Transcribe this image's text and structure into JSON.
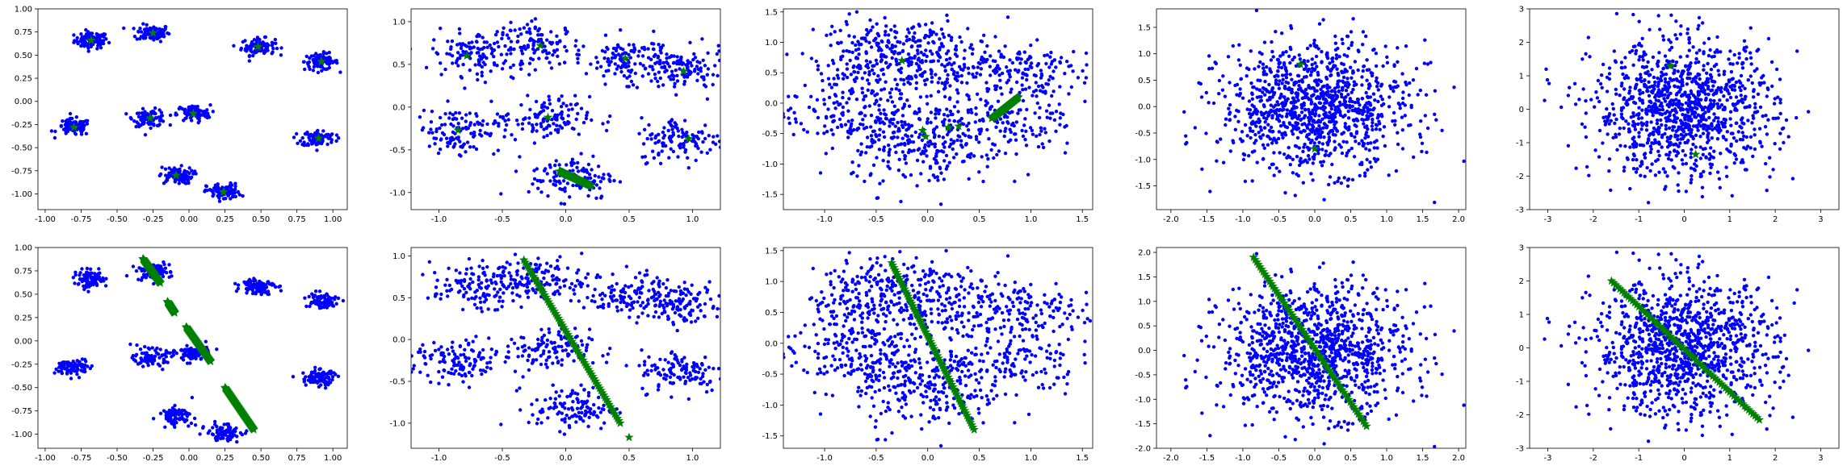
{
  "colors": {
    "points": "#0000ff",
    "stars": "#008000"
  },
  "chart_data": [
    {
      "type": "scatter",
      "panel": "row1-col1",
      "xlim": [
        -1.05,
        1.1
      ],
      "ylim": [
        -1.17,
        1.0
      ],
      "xticks": [
        "-1.00",
        "-0.75",
        "-0.50",
        "-0.25",
        "0.00",
        "0.25",
        "0.50",
        "0.75",
        "1.00"
      ],
      "yticks": [
        "1.00",
        "0.75",
        "0.50",
        "0.25",
        "0.00",
        "-0.25",
        "-0.50",
        "-0.75",
        "-1.00"
      ],
      "xtick_values": [
        -1,
        -0.75,
        -0.5,
        -0.25,
        0,
        0.25,
        0.5,
        0.75,
        1
      ],
      "ytick_values": [
        1,
        0.75,
        0.5,
        0.25,
        0,
        -0.25,
        -0.5,
        -0.75,
        -1
      ],
      "clusters": [
        [
          -0.68,
          0.66
        ],
        [
          -0.25,
          0.74
        ],
        [
          0.48,
          0.59
        ],
        [
          0.92,
          0.43
        ],
        [
          -0.8,
          -0.28
        ],
        [
          -0.27,
          -0.18
        ],
        [
          0.03,
          -0.13
        ],
        [
          0.9,
          -0.4
        ],
        [
          -0.09,
          -0.8
        ],
        [
          0.24,
          -0.98
        ]
      ],
      "cluster_spread": 0.045,
      "points_per_cluster": 90,
      "stars": [
        [
          -0.68,
          0.66
        ],
        [
          -0.25,
          0.74
        ],
        [
          0.48,
          0.59
        ],
        [
          0.92,
          0.43
        ],
        [
          -0.8,
          -0.28
        ],
        [
          -0.27,
          -0.18
        ],
        [
          0.03,
          -0.13
        ],
        [
          0.9,
          -0.4
        ],
        [
          -0.09,
          -0.8
        ],
        [
          0.24,
          -0.98
        ]
      ],
      "star_line": null
    },
    {
      "type": "scatter",
      "panel": "row1-col2",
      "xlim": [
        -1.22,
        1.22
      ],
      "ylim": [
        -1.2,
        1.15
      ],
      "xticks": [
        "-1.0",
        "-0.5",
        "0.0",
        "0.5",
        "1.0"
      ],
      "yticks": [
        "1.0",
        "0.5",
        "0.0",
        "-0.5",
        "-1.0"
      ],
      "xtick_values": [
        -1,
        -0.5,
        0,
        0.5,
        1
      ],
      "ytick_values": [
        1,
        0.5,
        0,
        -0.5,
        -1
      ],
      "clusters": [
        [
          -0.72,
          0.63
        ],
        [
          -0.2,
          0.72
        ],
        [
          0.5,
          0.55
        ],
        [
          0.93,
          0.42
        ],
        [
          -0.85,
          -0.27
        ],
        [
          -0.15,
          -0.14
        ],
        [
          0.05,
          -0.82
        ],
        [
          0.92,
          -0.38
        ]
      ],
      "cluster_spread": 0.13,
      "points_per_cluster": 120,
      "stars": [
        [
          -0.78,
          0.6
        ],
        [
          -0.2,
          0.72
        ],
        [
          0.47,
          0.57
        ],
        [
          0.93,
          0.42
        ],
        [
          -0.85,
          -0.27
        ],
        [
          -0.14,
          -0.12
        ],
        [
          0.97,
          -0.37
        ]
      ],
      "star_line": [
        [
          -0.05,
          -0.75
        ],
        [
          0.2,
          -0.92
        ]
      ]
    },
    {
      "type": "scatter",
      "panel": "row1-col3",
      "xlim": [
        -1.4,
        1.6
      ],
      "ylim": [
        -1.75,
        1.55
      ],
      "xticks": [
        "-1.0",
        "-0.5",
        "0.0",
        "0.5",
        "1.0",
        "1.5"
      ],
      "yticks": [
        "1.5",
        "1.0",
        "0.5",
        "0.0",
        "-0.5",
        "-1.0",
        "-1.5"
      ],
      "xtick_values": [
        -1,
        -0.5,
        0,
        0.5,
        1,
        1.5
      ],
      "ytick_values": [
        1.5,
        1,
        0.5,
        0,
        -0.5,
        -1,
        -1.5
      ],
      "clusters": [
        [
          -0.6,
          0.6
        ],
        [
          0.2,
          0.65
        ],
        [
          0.9,
          0.5
        ],
        [
          -0.8,
          -0.2
        ],
        [
          -0.1,
          -0.3
        ],
        [
          0.75,
          -0.3
        ],
        [
          0.0,
          -0.9
        ],
        [
          -0.3,
          0.9
        ]
      ],
      "cluster_spread": 0.28,
      "points_per_cluster": 140,
      "stars": [
        [
          -0.25,
          0.7
        ],
        [
          -0.05,
          -0.45
        ],
        [
          -0.02,
          -0.55
        ],
        [
          0.2,
          -0.4
        ],
        [
          0.3,
          -0.38
        ]
      ],
      "star_line": [
        [
          0.62,
          -0.25
        ],
        [
          0.88,
          0.1
        ]
      ]
    },
    {
      "type": "scatter",
      "panel": "row1-col4",
      "xlim": [
        -2.2,
        2.1
      ],
      "ylim": [
        -1.95,
        1.85
      ],
      "xticks": [
        "-2.0",
        "-1.5",
        "-1.0",
        "-0.5",
        "0.0",
        "0.5",
        "1.0",
        "1.5",
        "2.0"
      ],
      "yticks": [
        "1.5",
        "1.0",
        "0.5",
        "0.0",
        "-0.5",
        "-1.0",
        "-1.5"
      ],
      "xtick_values": [
        -2,
        -1.5,
        -1,
        -0.5,
        0,
        0.5,
        1,
        1.5,
        2
      ],
      "ytick_values": [
        1.5,
        1,
        0.5,
        0,
        -0.5,
        -1,
        -1.5
      ],
      "gaussian": {
        "sx": 0.65,
        "sy": 0.6,
        "n": 1100
      },
      "stars": [
        [
          -0.2,
          0.8
        ],
        [
          0.0,
          -0.8
        ]
      ],
      "star_line": null
    },
    {
      "type": "scatter",
      "panel": "row1-col5",
      "xlim": [
        -3.4,
        3.4
      ],
      "ylim": [
        -3.0,
        3.0
      ],
      "xticks": [
        "-3",
        "-2",
        "-1",
        "0",
        "1",
        "2",
        "3"
      ],
      "yticks": [
        "3",
        "2",
        "1",
        "0",
        "-1",
        "-2",
        "-3"
      ],
      "xtick_values": [
        -3,
        -2,
        -1,
        0,
        1,
        2,
        3
      ],
      "ytick_values": [
        3,
        2,
        1,
        0,
        -1,
        -2,
        -3
      ],
      "gaussian": {
        "sx": 1.0,
        "sy": 1.0,
        "n": 1100
      },
      "stars": [
        [
          -0.3,
          1.3
        ],
        [
          0.25,
          -1.35
        ]
      ],
      "star_line": null
    },
    {
      "type": "scatter",
      "panel": "row2-col1",
      "xlim": [
        -1.05,
        1.1
      ],
      "ylim": [
        -1.15,
        1.0
      ],
      "xticks": [
        "-1.00",
        "-0.75",
        "-0.50",
        "-0.25",
        "0.00",
        "0.25",
        "0.50",
        "0.75",
        "1.00"
      ],
      "yticks": [
        "1.00",
        "0.75",
        "0.50",
        "0.25",
        "0.00",
        "-0.25",
        "-0.50",
        "-0.75",
        "-1.00"
      ],
      "xtick_values": [
        -1,
        -0.75,
        -0.5,
        -0.25,
        0,
        0.25,
        0.5,
        0.75,
        1
      ],
      "ytick_values": [
        1,
        0.75,
        0.5,
        0.25,
        0,
        -0.25,
        -0.5,
        -0.75,
        -1
      ],
      "clusters": [
        [
          -0.68,
          0.66
        ],
        [
          -0.25,
          0.74
        ],
        [
          0.48,
          0.59
        ],
        [
          0.92,
          0.43
        ],
        [
          -0.8,
          -0.28
        ],
        [
          -0.27,
          -0.18
        ],
        [
          0.03,
          -0.13
        ],
        [
          0.9,
          -0.4
        ],
        [
          -0.09,
          -0.8
        ],
        [
          0.24,
          -0.98
        ]
      ],
      "cluster_spread": 0.045,
      "points_per_cluster": 90,
      "stars": [],
      "star_segments": [
        [
          [
            -0.32,
            0.88
          ],
          [
            -0.2,
            0.62
          ]
        ],
        [
          [
            -0.15,
            0.42
          ],
          [
            -0.1,
            0.3
          ]
        ],
        [
          [
            -0.02,
            0.15
          ],
          [
            0.15,
            -0.22
          ]
        ],
        [
          [
            0.25,
            -0.5
          ],
          [
            0.45,
            -0.95
          ]
        ]
      ]
    },
    {
      "type": "scatter",
      "panel": "row2-col2",
      "xlim": [
        -1.22,
        1.22
      ],
      "ylim": [
        -1.3,
        1.1
      ],
      "xticks": [
        "-1.0",
        "-0.5",
        "0.0",
        "0.5",
        "1.0"
      ],
      "yticks": [
        "1.0",
        "0.5",
        "0.0",
        "-0.5",
        "-1.0"
      ],
      "xtick_values": [
        -1,
        -0.5,
        0,
        0.5,
        1
      ],
      "ytick_values": [
        1,
        0.5,
        0,
        -0.5,
        -1
      ],
      "clusters": [
        [
          -0.72,
          0.63
        ],
        [
          -0.2,
          0.72
        ],
        [
          0.5,
          0.55
        ],
        [
          0.93,
          0.42
        ],
        [
          -0.85,
          -0.27
        ],
        [
          -0.15,
          -0.14
        ],
        [
          0.05,
          -0.82
        ],
        [
          0.92,
          -0.38
        ]
      ],
      "cluster_spread": 0.13,
      "points_per_cluster": 120,
      "stars": [
        [
          0.5,
          -1.17
        ]
      ],
      "star_line": [
        [
          -0.33,
          0.95
        ],
        [
          0.43,
          -1.0
        ]
      ]
    },
    {
      "type": "scatter",
      "panel": "row2-col3",
      "xlim": [
        -1.4,
        1.6
      ],
      "ylim": [
        -1.7,
        1.55
      ],
      "xticks": [
        "-1.0",
        "-0.5",
        "0.0",
        "0.5",
        "1.0",
        "1.5"
      ],
      "yticks": [
        "1.5",
        "1.0",
        "0.5",
        "0.0",
        "-0.5",
        "-1.0",
        "-1.5"
      ],
      "xtick_values": [
        -1,
        -0.5,
        0,
        0.5,
        1,
        1.5
      ],
      "ytick_values": [
        1.5,
        1,
        0.5,
        0,
        -0.5,
        -1,
        -1.5
      ],
      "clusters": [
        [
          -0.6,
          0.6
        ],
        [
          0.2,
          0.65
        ],
        [
          0.9,
          0.5
        ],
        [
          -0.8,
          -0.2
        ],
        [
          -0.1,
          -0.3
        ],
        [
          0.75,
          -0.3
        ],
        [
          0.0,
          -0.9
        ],
        [
          -0.3,
          0.9
        ]
      ],
      "cluster_spread": 0.28,
      "points_per_cluster": 140,
      "stars": [],
      "star_line": [
        [
          -0.35,
          1.3
        ],
        [
          0.45,
          -1.4
        ]
      ]
    },
    {
      "type": "scatter",
      "panel": "row3-col4",
      "xlim": [
        -2.2,
        2.1
      ],
      "ylim": [
        -2.0,
        2.1
      ],
      "xticks": [
        "-2.0",
        "-1.5",
        "-1.0",
        "-0.5",
        "0.0",
        "0.5",
        "1.0",
        "1.5",
        "2.0"
      ],
      "yticks": [
        "2.0",
        "1.5",
        "1.0",
        "0.5",
        "0.0",
        "-0.5",
        "-1.0",
        "-1.5",
        "-2.0"
      ],
      "xtick_values": [
        -2,
        -1.5,
        -1,
        -0.5,
        0,
        0.5,
        1,
        1.5,
        2
      ],
      "ytick_values": [
        2,
        1.5,
        1,
        0.5,
        0,
        -0.5,
        -1,
        -1.5,
        -2
      ],
      "gaussian": {
        "sx": 0.65,
        "sy": 0.65,
        "n": 1100
      },
      "stars": [],
      "star_line": [
        [
          -0.85,
          1.9
        ],
        [
          0.72,
          -1.55
        ]
      ]
    },
    {
      "type": "scatter",
      "panel": "row2-col5",
      "xlim": [
        -3.4,
        3.4
      ],
      "ylim": [
        -3.0,
        3.0
      ],
      "xticks": [
        "-3",
        "-2",
        "-1",
        "0",
        "1",
        "2",
        "3"
      ],
      "yticks": [
        "3",
        "2",
        "1",
        "0",
        "-1",
        "-2",
        "-3"
      ],
      "xtick_values": [
        -3,
        -2,
        -1,
        0,
        1,
        2,
        3
      ],
      "ytick_values": [
        3,
        2,
        1,
        0,
        -1,
        -2,
        -3
      ],
      "gaussian": {
        "sx": 1.0,
        "sy": 1.0,
        "n": 1100
      },
      "stars": [],
      "star_line": [
        [
          -1.6,
          2.0
        ],
        [
          1.65,
          -2.15
        ]
      ]
    }
  ]
}
